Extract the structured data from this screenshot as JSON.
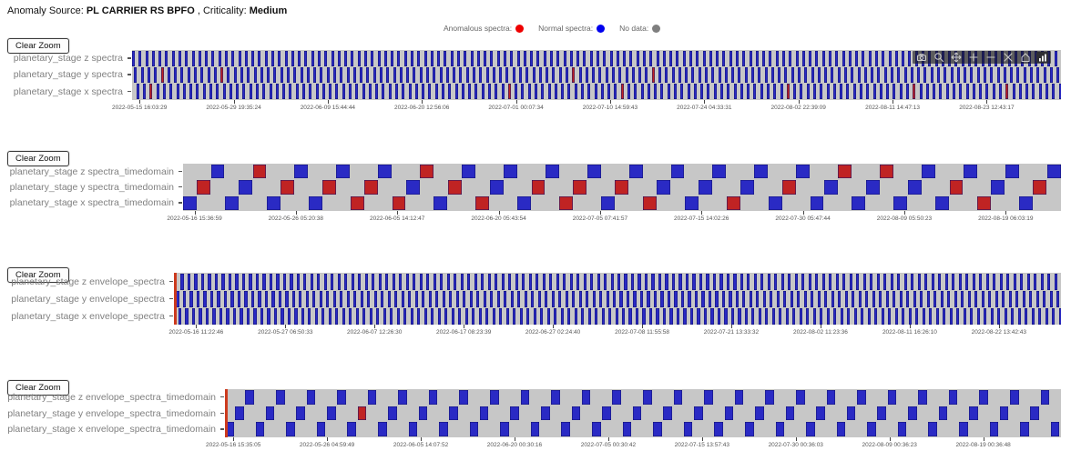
{
  "header": {
    "anomaly_source_label": "Anomaly Source:",
    "anomaly_source": "PL CARRIER RS BPFO",
    "criticality_label": ", Criticality:",
    "criticality": "Medium"
  },
  "legend": {
    "items": [
      {
        "label": "Anomalous spectra:",
        "color": "#ee0000"
      },
      {
        "label": "Normal spectra:",
        "color": "#0000ee"
      },
      {
        "label": "No data:",
        "color": "#7f7f7f"
      }
    ]
  },
  "ui": {
    "clear_zoom_label": "Clear Zoom"
  },
  "colors": {
    "anomalous": "#c02323",
    "normal": "#2a2ac4",
    "no_data": "#7f7f7f",
    "cell_blue": "#2a2ac4",
    "cell_blue_edge": "#10106e",
    "cell_red": "#c02323",
    "plot_bg": "#c7c7c7",
    "edge_marker": "#cc3a1e"
  },
  "modebar": {
    "icons": [
      "camera-icon",
      "zoom-icon",
      "pan-icon",
      "zoom-in-icon",
      "zoom-out-icon",
      "autoscale-icon",
      "reset-axes-icon",
      "plotly-logo-icon"
    ]
  },
  "chart_data": [
    {
      "type": "heatmap",
      "style": "dense-stripes",
      "group": "spectra",
      "rows": [
        "planetary_stage z spectra",
        "planetary_stage y spectra",
        "planetary_stage x spectra"
      ],
      "x_ticks": [
        "2022-05-15 16:03:29",
        "2022-05-29 19:35:24",
        "2022-06-09 15:44:44",
        "2022-06-20 12:56:06",
        "2022-07-01 00:07:34",
        "2022-07-10 14:59:43",
        "2022-07-24 04:33:31",
        "2022-08-02 22:39:09",
        "2022-08-11 14:47:13",
        "2022-08-23 12:43:17"
      ],
      "cells_per_row": 140,
      "red_marks": {
        "z": [],
        "y": [
          0.031,
          0.092,
          0.468,
          0.555
        ],
        "x": [
          0.017,
          0.399,
          0.519,
          0.697,
          0.836,
          0.934
        ]
      },
      "edge_marker": false,
      "has_modebar": true
    },
    {
      "type": "heatmap",
      "style": "blocks",
      "group": "spectra_timedomain",
      "rows": [
        "planetary_stage z spectra_timedomain",
        "planetary_stage y spectra_timedomain",
        "planetary_stage x spectra_timedomain"
      ],
      "x_ticks": [
        "2022-05-16 15:36:59",
        "2022-05-26 05:20:38",
        "2022-06-05 14:12:47",
        "2022-06-20 05:43:54",
        "2022-07-05 07:41:57",
        "2022-07-15 14:02:26",
        "2022-07-30 05:47:44",
        "2022-08-09 05:50:23",
        "2022-08-19 06:03:19"
      ],
      "slots": "BRBBBRBRBBRBRRBRBRBRBRBBBRBRRBBRBRBBBBBRBBBRBBBRBBRBBBBRBRBBBRB",
      "edge_marker": false,
      "has_modebar": false
    },
    {
      "type": "heatmap",
      "style": "dense-stripes",
      "group": "envelope_spectra",
      "rows": [
        "planetary_stage z envelope_spectra",
        "planetary_stage y envelope_spectra",
        "planetary_stage x envelope_spectra"
      ],
      "x_ticks": [
        "2022-05-16 11:22:46",
        "2022-05-27 06:50:33",
        "2022-06-07 12:26:30",
        "2022-06-17 08:23:39",
        "2022-06-27 02:24:40",
        "2022-07-08 11:55:58",
        "2022-07-21 13:33:32",
        "2022-08-02 11:23:36",
        "2022-08-11 16:26:10",
        "2022-08-22 13:42:43"
      ],
      "cells_per_row": 130,
      "red_marks": {
        "z": [],
        "y": [],
        "x": []
      },
      "edge_marker": true,
      "has_modebar": false
    },
    {
      "type": "heatmap",
      "style": "blocks",
      "group": "envelope_spectra_timedomain",
      "rows": [
        "planetary_stage z envelope_spectra_timedomain",
        "planetary_stage y envelope_spectra_timedomain",
        "planetary_stage x envelope_spectra_timedomain"
      ],
      "x_ticks": [
        "2022-05-16 15:35:05",
        "2022-05-26 04:59:49",
        "2022-06-05 14:07:52",
        "2022-06-20 00:30:16",
        "2022-07-05 00:30:42",
        "2022-07-15 13:57:43",
        "2022-07-30 00:36:03",
        "2022-08-09 00:36:23",
        "2022-08-19 00:36:48"
      ],
      "slots": "BBBBBBBBBBBBBRBBBBBBBBBBBBBBBBBBBBBBBBBBBBBBBBBBBBBBBBBBBBBBBBBBBBBBBBBBBBBBBBBBBB",
      "edge_marker": true,
      "has_modebar": false
    }
  ]
}
